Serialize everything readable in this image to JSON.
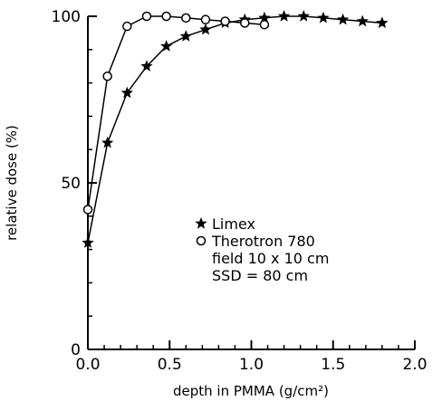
{
  "chart_data": {
    "type": "line",
    "xlabel": "depth in PMMA (g/cm²)",
    "ylabel": "relative dose (%)",
    "xlim": [
      0.0,
      2.0
    ],
    "ylim": [
      0,
      100
    ],
    "xticks": [
      "0.0",
      "0.5",
      "1.0",
      "1.5",
      "2.0"
    ],
    "yticks": [
      "0",
      "50",
      "100"
    ],
    "grid": false,
    "legend_position": "center-right",
    "series": [
      {
        "name": "Limex",
        "marker": "star",
        "x": [
          0.0,
          0.12,
          0.24,
          0.36,
          0.48,
          0.6,
          0.72,
          0.84,
          0.96,
          1.08,
          1.2,
          1.32,
          1.44,
          1.56,
          1.68,
          1.8
        ],
        "y": [
          32,
          62,
          77,
          85,
          91,
          94,
          96,
          98,
          99,
          99.5,
          100,
          100,
          99.5,
          99,
          98.5,
          98
        ]
      },
      {
        "name": "Therotron 780",
        "marker": "circle",
        "x": [
          0.0,
          0.12,
          0.24,
          0.36,
          0.48,
          0.6,
          0.72,
          0.84,
          0.96,
          1.08
        ],
        "y": [
          42,
          82,
          97,
          100,
          100,
          99.5,
          99,
          98.5,
          98,
          97.5
        ]
      }
    ],
    "legend_notes": [
      "field 10 x 10 cm",
      "SSD = 80 cm"
    ]
  }
}
